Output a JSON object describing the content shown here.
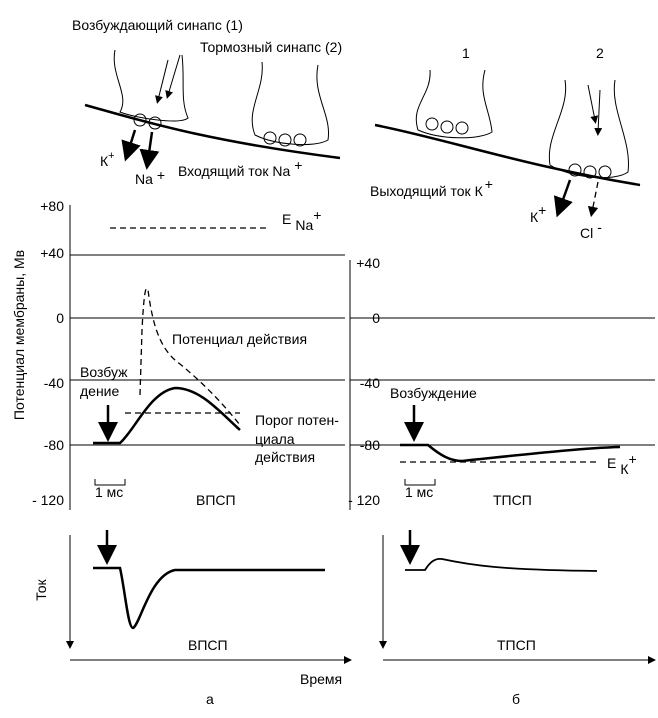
{
  "top": {
    "excitatory_synapse": "Возбуждающий синапс (1)",
    "inhibitory_synapse": "Тормозный синапс (2)",
    "k_ion": {
      "main": "К",
      "sup": "+"
    },
    "na_ion": {
      "main": "Na",
      "sup": "+"
    },
    "inward_current": {
      "main": "Входящий ток Na",
      "sup": "+"
    },
    "terminal_1": "1",
    "terminal_2": "2",
    "outward_current": {
      "main": "Выходящий ток К",
      "sup": "+"
    },
    "k_ion_right": {
      "main": "К",
      "sup": "+"
    },
    "cl_ion": {
      "main": "Cl",
      "sup": "-"
    }
  },
  "potential_panel": {
    "y_axis_label": "Потенциал мембраны, Мв",
    "left_ticks": [
      "+80",
      "+40",
      "0",
      "-40",
      "-80",
      "- 120"
    ],
    "right_ticks": [
      "+40",
      "0",
      "-40",
      "-80",
      "- 120"
    ],
    "e_na": {
      "main": "E",
      "sub": "Na",
      "sup": "+"
    },
    "action_potential": "Потенциал действия",
    "excitation_left": [
      "Возбуж",
      "дение"
    ],
    "threshold": [
      "Порог потен-",
      "циала",
      "действия"
    ],
    "scale_left": "1 мс",
    "epsp": "ВПСП",
    "excitation_right": "Возбуждение",
    "e_k": {
      "main": "Е",
      "sub": "К",
      "sup": "+"
    },
    "scale_right": "1 мс",
    "ipsp": "ТПСП"
  },
  "current_panel": {
    "y_axis_label": "Ток",
    "epsp": "ВПСП",
    "ipsp": "ТПСП",
    "x_axis_label": "Время",
    "label_a": "а",
    "label_b": "б"
  }
}
